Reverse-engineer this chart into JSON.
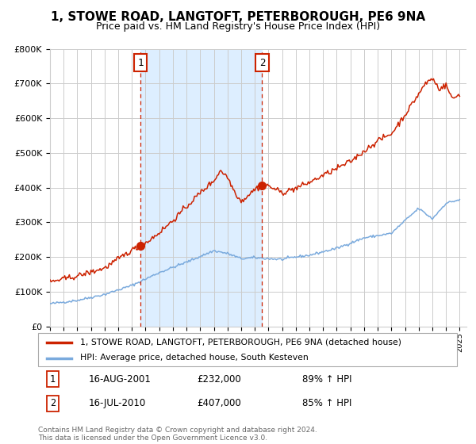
{
  "title": "1, STOWE ROAD, LANGTOFT, PETERBOROUGH, PE6 9NA",
  "subtitle": "Price paid vs. HM Land Registry's House Price Index (HPI)",
  "legend_line1": "1, STOWE ROAD, LANGTOFT, PETERBOROUGH, PE6 9NA (detached house)",
  "legend_line2": "HPI: Average price, detached house, South Kesteven",
  "annotation1_date": "16-AUG-2001",
  "annotation1_price": "£232,000",
  "annotation1_hpi": "89% ↑ HPI",
  "annotation2_date": "16-JUL-2010",
  "annotation2_price": "£407,000",
  "annotation2_hpi": "85% ↑ HPI",
  "footer": "Contains HM Land Registry data © Crown copyright and database right 2024.\nThis data is licensed under the Open Government Licence v3.0.",
  "sale1_year": 2001.62,
  "sale2_year": 2010.54,
  "sale1_price": 232000,
  "sale2_price": 407000,
  "red_color": "#cc2200",
  "blue_color": "#7aaadd",
  "shade_color": "#ddeeff",
  "grid_color": "#cccccc",
  "bg_color": "#f0f4ff",
  "ylim": [
    0,
    800000
  ],
  "xlim_start": 1995,
  "xlim_end": 2025.5,
  "title_fontsize": 11,
  "subtitle_fontsize": 9
}
